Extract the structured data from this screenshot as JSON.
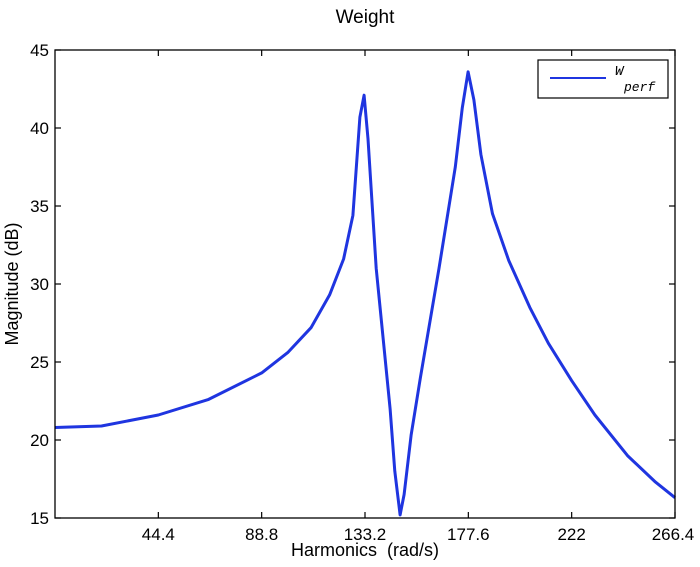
{
  "chart_data": {
    "type": "line",
    "title": "Weight",
    "xlabel": "Harmonics  (rad/s)",
    "ylabel": "Magnitude (dB)",
    "xlim": [
      0,
      266.4
    ],
    "ylim": [
      15,
      45
    ],
    "xticks": [
      44.4,
      88.8,
      133.2,
      177.6,
      222,
      266.4
    ],
    "xtick_labels": [
      "44.4",
      "88.8",
      "133.2",
      "177.6",
      "222",
      "266.4"
    ],
    "yticks": [
      15,
      20,
      25,
      30,
      35,
      40,
      45
    ],
    "ytick_labels": [
      "15",
      "20",
      "25",
      "30",
      "35",
      "40",
      "45"
    ],
    "grid": false,
    "legend_position": "upper right",
    "series": [
      {
        "name": "W_perf",
        "legend_main": "W",
        "legend_sub": "perf",
        "color": "#1f35e0",
        "x": [
          0,
          20,
          44.4,
          66,
          88.8,
          100,
          110,
          118,
          124,
          128,
          131,
          132.8,
          134.5,
          138,
          144,
          146,
          148.3,
          150,
          153,
          157,
          165,
          172,
          175,
          177.5,
          180,
          183,
          188,
          195,
          204,
          212,
          222,
          232,
          246,
          258,
          266.4
        ],
        "y": [
          20.8,
          20.9,
          21.6,
          22.6,
          24.3,
          25.6,
          27.2,
          29.3,
          31.6,
          34.4,
          40.7,
          42.1,
          39.3,
          31.0,
          22.0,
          18.0,
          15.2,
          16.5,
          20.3,
          24.0,
          31.0,
          37.5,
          41.3,
          43.6,
          41.8,
          38.3,
          34.5,
          31.5,
          28.5,
          26.2,
          23.8,
          21.6,
          19.0,
          17.3,
          16.3
        ]
      }
    ]
  }
}
